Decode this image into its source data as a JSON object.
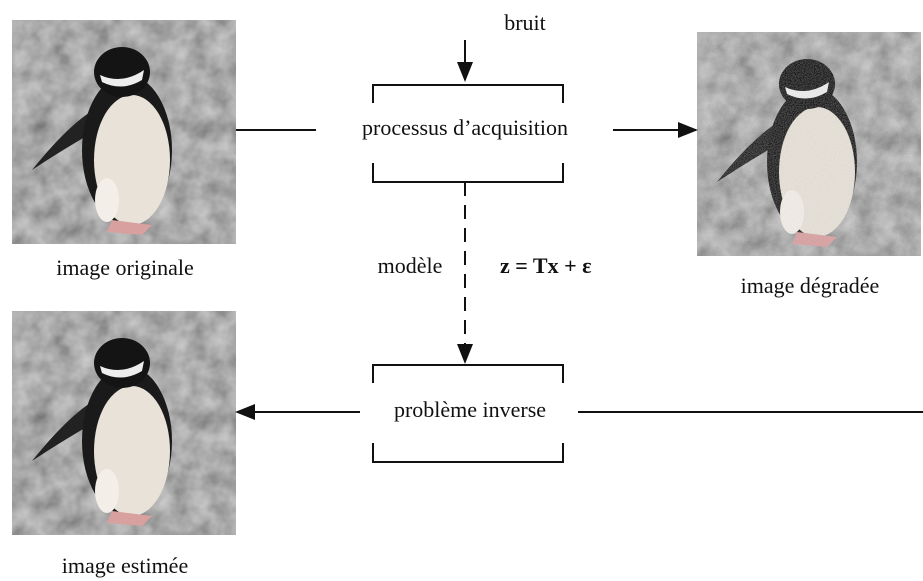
{
  "labels": {
    "noise": "bruit",
    "acquisition": "processus d’acquisition",
    "original": "image originale",
    "degraded": "image dégradée",
    "model": "modèle",
    "equation": "z = Tx + ε",
    "inverse": "problème inverse",
    "estimated": "image estimée"
  }
}
